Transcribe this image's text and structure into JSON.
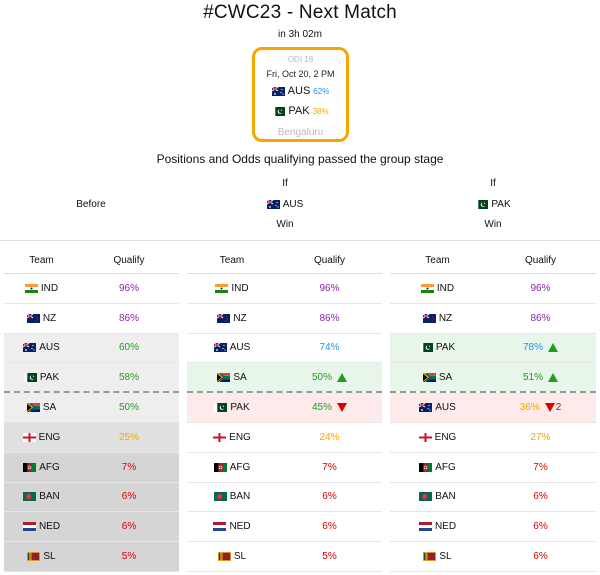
{
  "title": "#CWC23 - Next Match",
  "countdown": "in 3h 02m",
  "match": {
    "odi": "ODI 18",
    "date": "Fri, Oct 20, 2 PM",
    "team1": {
      "code": "AUS",
      "pct": "62%"
    },
    "team2": {
      "code": "PAK",
      "pct": "38%"
    },
    "venue": "Bengaluru"
  },
  "subtitle": "Positions and Odds qualifying passed the group stage",
  "headers": {
    "before": "Before",
    "if_label": "If",
    "win_label": "Win",
    "aus": "AUS",
    "pak": "PAK"
  },
  "columns": {
    "team": "Team",
    "qualify": "Qualify"
  },
  "tables": [
    {
      "rows": [
        {
          "team": "IND",
          "flag": "ind",
          "q": "96%",
          "color": "purple",
          "bg": ""
        },
        {
          "team": "NZ",
          "flag": "nz",
          "q": "86%",
          "color": "purple",
          "bg": ""
        },
        {
          "team": "AUS",
          "flag": "aus",
          "q": "60%",
          "color": "green",
          "bg": "lightgray"
        },
        {
          "team": "PAK",
          "flag": "pak",
          "q": "58%",
          "color": "green",
          "bg": "lightgray",
          "dashed": true
        },
        {
          "team": "SA",
          "flag": "sa",
          "q": "50%",
          "color": "green",
          "bg": "lightgray"
        },
        {
          "team": "ENG",
          "flag": "eng",
          "q": "25%",
          "color": "orange",
          "bg": "gray"
        },
        {
          "team": "AFG",
          "flag": "afg",
          "q": "7%",
          "color": "red",
          "bg": "darkgray"
        },
        {
          "team": "BAN",
          "flag": "ban",
          "q": "6%",
          "color": "red",
          "bg": "darkgray"
        },
        {
          "team": "NED",
          "flag": "ned",
          "q": "6%",
          "color": "red",
          "bg": "darkgray"
        },
        {
          "team": "SL",
          "flag": "sl",
          "q": "5%",
          "color": "red",
          "bg": "darkgray"
        }
      ]
    },
    {
      "rows": [
        {
          "team": "IND",
          "flag": "ind",
          "q": "96%",
          "color": "purple",
          "bg": ""
        },
        {
          "team": "NZ",
          "flag": "nz",
          "q": "86%",
          "color": "purple",
          "bg": ""
        },
        {
          "team": "AUS",
          "flag": "aus",
          "q": "74%",
          "color": "blue",
          "bg": ""
        },
        {
          "team": "SA",
          "flag": "sa",
          "q": "50%",
          "color": "green",
          "bg": "green",
          "arrow": "up",
          "dashed": true
        },
        {
          "team": "PAK",
          "flag": "pak",
          "q": "45%",
          "color": "green",
          "bg": "red",
          "arrow": "down"
        },
        {
          "team": "ENG",
          "flag": "eng",
          "q": "24%",
          "color": "orange",
          "bg": ""
        },
        {
          "team": "AFG",
          "flag": "afg",
          "q": "7%",
          "color": "red",
          "bg": ""
        },
        {
          "team": "BAN",
          "flag": "ban",
          "q": "6%",
          "color": "red",
          "bg": ""
        },
        {
          "team": "NED",
          "flag": "ned",
          "q": "6%",
          "color": "red",
          "bg": ""
        },
        {
          "team": "SL",
          "flag": "sl",
          "q": "5%",
          "color": "red",
          "bg": ""
        }
      ]
    },
    {
      "rows": [
        {
          "team": "IND",
          "flag": "ind",
          "q": "96%",
          "color": "purple",
          "bg": ""
        },
        {
          "team": "NZ",
          "flag": "nz",
          "q": "86%",
          "color": "purple",
          "bg": ""
        },
        {
          "team": "PAK",
          "flag": "pak",
          "q": "78%",
          "color": "blue",
          "bg": "green",
          "arrow": "up"
        },
        {
          "team": "SA",
          "flag": "sa",
          "q": "51%",
          "color": "green",
          "bg": "green",
          "arrow": "up",
          "dashed": true
        },
        {
          "team": "AUS",
          "flag": "aus",
          "q": "36%",
          "color": "orange",
          "bg": "red",
          "arrow": "down",
          "change": "2"
        },
        {
          "team": "ENG",
          "flag": "eng",
          "q": "27%",
          "color": "orange",
          "bg": ""
        },
        {
          "team": "AFG",
          "flag": "afg",
          "q": "7%",
          "color": "red",
          "bg": ""
        },
        {
          "team": "BAN",
          "flag": "ban",
          "q": "6%",
          "color": "red",
          "bg": ""
        },
        {
          "team": "NED",
          "flag": "ned",
          "q": "6%",
          "color": "red",
          "bg": ""
        },
        {
          "team": "SL",
          "flag": "sl",
          "q": "6%",
          "color": "red",
          "bg": ""
        }
      ]
    }
  ],
  "colors": {
    "accent_orange": "#f5a700",
    "purple": "#8e24aa",
    "green": "#1e9e1e",
    "red": "#d80000",
    "blue": "#2196f3"
  }
}
